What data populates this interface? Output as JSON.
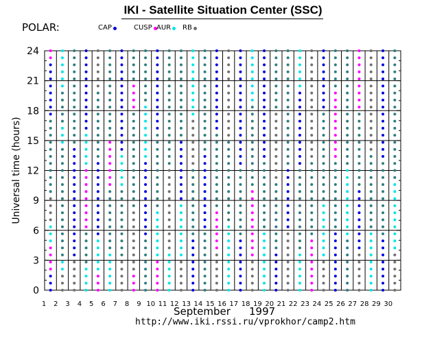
{
  "header": {
    "title": "IKI - Satellite Situation Center (SSC)",
    "satellite": "POLAR:"
  },
  "legend": [
    {
      "label": "CAP",
      "color": "#0000dd"
    },
    {
      "label": "CUSP",
      "color": "#ff00ff"
    },
    {
      "label": "AUR",
      "color": "#00e5e5"
    },
    {
      "label": "RB",
      "color": "#707070"
    }
  ],
  "footer": {
    "month": "September",
    "year": "1997",
    "url": "http://www.iki.rssi.ru/vprokhor/camp2.htm"
  },
  "chart_data": {
    "type": "scatter",
    "title": "IKI - Satellite Situation Center (SSC)",
    "ylabel": "Universal time (hours)",
    "xlabel": "September 1997",
    "x": [
      1,
      2,
      3,
      4,
      5,
      6,
      7,
      8,
      9,
      10,
      11,
      12,
      13,
      14,
      15,
      16,
      17,
      18,
      19,
      20,
      21,
      22,
      23,
      24,
      25,
      26,
      27,
      28,
      29,
      30
    ],
    "xlim": [
      1,
      31
    ],
    "ylim": [
      0,
      24
    ],
    "yticks": [
      0,
      3,
      6,
      9,
      12,
      15,
      18,
      21,
      24
    ],
    "grid": true,
    "points_per_day": 35,
    "region_colors": {
      "CAP": "#0000dd",
      "CUSP": "#ff00ff",
      "AUR": "#00e5e5",
      "RB": "#707070",
      "other": "#2e7d7d"
    },
    "series": [
      {
        "day": 1,
        "segments": [
          {
            "from": 0,
            "to": 2,
            "region": "CAP"
          },
          {
            "from": 2,
            "to": 4.4,
            "region": "CUSP"
          },
          {
            "from": 4.4,
            "to": 6.9,
            "region": "AUR"
          },
          {
            "from": 6.9,
            "to": 9.5,
            "region": "RB"
          },
          {
            "from": 9.5,
            "to": 17.5,
            "region": "other"
          },
          {
            "from": 17.5,
            "to": 23,
            "region": "CAP"
          },
          {
            "from": 23,
            "to": 24,
            "region": "CUSP"
          }
        ]
      },
      {
        "day": 2,
        "segments": [
          {
            "from": 0,
            "to": 2,
            "region": "RB"
          },
          {
            "from": 2,
            "to": 3.5,
            "region": "AUR"
          },
          {
            "from": 3.5,
            "to": 14.5,
            "region": "other"
          },
          {
            "from": 14.5,
            "to": 16.5,
            "region": "AUR"
          },
          {
            "from": 16.5,
            "to": 20,
            "region": "other"
          },
          {
            "from": 20,
            "to": 24,
            "region": "AUR"
          }
        ]
      },
      {
        "day": 3,
        "segments": [
          {
            "from": 0,
            "to": 3,
            "region": "RB"
          },
          {
            "from": 3,
            "to": 14.5,
            "region": "CAP"
          },
          {
            "from": 14.5,
            "to": 24,
            "region": "other"
          }
        ]
      },
      {
        "day": 4,
        "segments": [
          {
            "from": 0,
            "to": 2.5,
            "region": "AUR"
          },
          {
            "from": 2.5,
            "to": 6,
            "region": "other"
          },
          {
            "from": 6,
            "to": 12,
            "region": "CUSP"
          },
          {
            "from": 12,
            "to": 16,
            "region": "AUR"
          },
          {
            "from": 16,
            "to": 24,
            "region": "CAP"
          }
        ]
      },
      {
        "day": 5,
        "segments": [
          {
            "from": 0,
            "to": 2,
            "region": "CUSP"
          },
          {
            "from": 2,
            "to": 5,
            "region": "AUR"
          },
          {
            "from": 5,
            "to": 13,
            "region": "CAP"
          },
          {
            "from": 13,
            "to": 20,
            "region": "other"
          },
          {
            "from": 20,
            "to": 24,
            "region": "RB"
          }
        ]
      },
      {
        "day": 6,
        "segments": [
          {
            "from": 0,
            "to": 4,
            "region": "AUR"
          },
          {
            "from": 4,
            "to": 10,
            "region": "other"
          },
          {
            "from": 10,
            "to": 15,
            "region": "CUSP"
          },
          {
            "from": 15,
            "to": 24,
            "region": "other"
          }
        ]
      },
      {
        "day": 7,
        "segments": [
          {
            "from": 0,
            "to": 3,
            "region": "RB"
          },
          {
            "from": 3,
            "to": 10,
            "region": "other"
          },
          {
            "from": 10,
            "to": 14,
            "region": "AUR"
          },
          {
            "from": 14,
            "to": 24,
            "region": "CAP"
          }
        ]
      },
      {
        "day": 8,
        "segments": [
          {
            "from": 0,
            "to": 2,
            "region": "CUSP"
          },
          {
            "from": 2,
            "to": 8,
            "region": "RB"
          },
          {
            "from": 8,
            "to": 18,
            "region": "other"
          },
          {
            "from": 18,
            "to": 21,
            "region": "CUSP"
          },
          {
            "from": 21,
            "to": 24,
            "region": "other"
          }
        ]
      },
      {
        "day": 9,
        "segments": [
          {
            "from": 0,
            "to": 5,
            "region": "other"
          },
          {
            "from": 5,
            "to": 13,
            "region": "CAP"
          },
          {
            "from": 13,
            "to": 19,
            "region": "AUR"
          },
          {
            "from": 19,
            "to": 24,
            "region": "other"
          }
        ]
      },
      {
        "day": 10,
        "segments": [
          {
            "from": 0,
            "to": 3,
            "region": "CUSP"
          },
          {
            "from": 3,
            "to": 8,
            "region": "AUR"
          },
          {
            "from": 8,
            "to": 16,
            "region": "other"
          },
          {
            "from": 16,
            "to": 24,
            "region": "CAP"
          }
        ]
      },
      {
        "day": 11,
        "segments": [
          {
            "from": 0,
            "to": 4,
            "region": "AUR"
          },
          {
            "from": 4,
            "to": 12,
            "region": "RB"
          },
          {
            "from": 12,
            "to": 24,
            "region": "other"
          }
        ]
      },
      {
        "day": 12,
        "segments": [
          {
            "from": 0,
            "to": 3,
            "region": "RB"
          },
          {
            "from": 3,
            "to": 9,
            "region": "AUR"
          },
          {
            "from": 9,
            "to": 15,
            "region": "CAP"
          },
          {
            "from": 15,
            "to": 24,
            "region": "other"
          }
        ]
      },
      {
        "day": 13,
        "segments": [
          {
            "from": 0,
            "to": 5,
            "region": "CAP"
          },
          {
            "from": 5,
            "to": 12,
            "region": "other"
          },
          {
            "from": 12,
            "to": 17,
            "region": "RB"
          },
          {
            "from": 17,
            "to": 24,
            "region": "AUR"
          }
        ]
      },
      {
        "day": 14,
        "segments": [
          {
            "from": 0,
            "to": 6,
            "region": "other"
          },
          {
            "from": 6,
            "to": 14,
            "region": "CAP"
          },
          {
            "from": 14,
            "to": 24,
            "region": "other"
          }
        ]
      },
      {
        "day": 15,
        "segments": [
          {
            "from": 0,
            "to": 4,
            "region": "RB"
          },
          {
            "from": 4,
            "to": 8,
            "region": "CUSP"
          },
          {
            "from": 8,
            "to": 16,
            "region": "other"
          },
          {
            "from": 16,
            "to": 24,
            "region": "CAP"
          }
        ]
      },
      {
        "day": 16,
        "segments": [
          {
            "from": 0,
            "to": 7,
            "region": "AUR"
          },
          {
            "from": 7,
            "to": 15,
            "region": "other"
          },
          {
            "from": 15,
            "to": 24,
            "region": "RB"
          }
        ]
      },
      {
        "day": 17,
        "segments": [
          {
            "from": 0,
            "to": 5,
            "region": "CAP"
          },
          {
            "from": 5,
            "to": 12,
            "region": "other"
          },
          {
            "from": 12,
            "to": 24,
            "region": "CAP"
          }
        ]
      },
      {
        "day": 18,
        "segments": [
          {
            "from": 0,
            "to": 3,
            "region": "RB"
          },
          {
            "from": 3,
            "to": 10,
            "region": "CUSP"
          },
          {
            "from": 10,
            "to": 19,
            "region": "other"
          },
          {
            "from": 19,
            "to": 24,
            "region": "AUR"
          }
        ]
      },
      {
        "day": 19,
        "segments": [
          {
            "from": 0,
            "to": 6,
            "region": "AUR"
          },
          {
            "from": 6,
            "to": 13,
            "region": "other"
          },
          {
            "from": 13,
            "to": 24,
            "region": "CAP"
          }
        ]
      },
      {
        "day": 20,
        "segments": [
          {
            "from": 0,
            "to": 4,
            "region": "CAP"
          },
          {
            "from": 4,
            "to": 11,
            "region": "other"
          },
          {
            "from": 11,
            "to": 18,
            "region": "RB"
          },
          {
            "from": 18,
            "to": 24,
            "region": "other"
          }
        ]
      },
      {
        "day": 21,
        "segments": [
          {
            "from": 0,
            "to": 6,
            "region": "RB"
          },
          {
            "from": 6,
            "to": 12,
            "region": "CAP"
          },
          {
            "from": 12,
            "to": 24,
            "region": "other"
          }
        ]
      },
      {
        "day": 22,
        "segments": [
          {
            "from": 0,
            "to": 4,
            "region": "AUR"
          },
          {
            "from": 4,
            "to": 12,
            "region": "other"
          },
          {
            "from": 12,
            "to": 20,
            "region": "CAP"
          },
          {
            "from": 20,
            "to": 24,
            "region": "AUR"
          }
        ]
      },
      {
        "day": 23,
        "segments": [
          {
            "from": 0,
            "to": 5,
            "region": "CUSP"
          },
          {
            "from": 5,
            "to": 13,
            "region": "other"
          },
          {
            "from": 13,
            "to": 24,
            "region": "RB"
          }
        ]
      },
      {
        "day": 24,
        "segments": [
          {
            "from": 0,
            "to": 3,
            "region": "RB"
          },
          {
            "from": 3,
            "to": 9,
            "region": "AUR"
          },
          {
            "from": 9,
            "to": 18,
            "region": "other"
          },
          {
            "from": 18,
            "to": 24,
            "region": "CAP"
          }
        ]
      },
      {
        "day": 25,
        "segments": [
          {
            "from": 0,
            "to": 6,
            "region": "CAP"
          },
          {
            "from": 6,
            "to": 13,
            "region": "other"
          },
          {
            "from": 13,
            "to": 20,
            "region": "CUSP"
          },
          {
            "from": 20,
            "to": 24,
            "region": "other"
          }
        ]
      },
      {
        "day": 26,
        "segments": [
          {
            "from": 0,
            "to": 5,
            "region": "other"
          },
          {
            "from": 5,
            "to": 12,
            "region": "AUR"
          },
          {
            "from": 12,
            "to": 24,
            "region": "other"
          }
        ]
      },
      {
        "day": 27,
        "segments": [
          {
            "from": 0,
            "to": 4,
            "region": "RB"
          },
          {
            "from": 4,
            "to": 10,
            "region": "CAP"
          },
          {
            "from": 10,
            "to": 18,
            "region": "other"
          },
          {
            "from": 18,
            "to": 24,
            "region": "CUSP"
          }
        ]
      },
      {
        "day": 28,
        "segments": [
          {
            "from": 0,
            "to": 6,
            "region": "AUR"
          },
          {
            "from": 6,
            "to": 14,
            "region": "other"
          },
          {
            "from": 14,
            "to": 24,
            "region": "RB"
          }
        ]
      },
      {
        "day": 29,
        "segments": [
          {
            "from": 0,
            "to": 5,
            "region": "CAP"
          },
          {
            "from": 5,
            "to": 13,
            "region": "other"
          },
          {
            "from": 13,
            "to": 24,
            "region": "CAP"
          }
        ]
      },
      {
        "day": 30,
        "segments": [
          {
            "from": 0,
            "to": 4,
            "region": "RB"
          },
          {
            "from": 4,
            "to": 11,
            "region": "AUR"
          },
          {
            "from": 11,
            "to": 24,
            "region": "other"
          }
        ]
      }
    ]
  }
}
